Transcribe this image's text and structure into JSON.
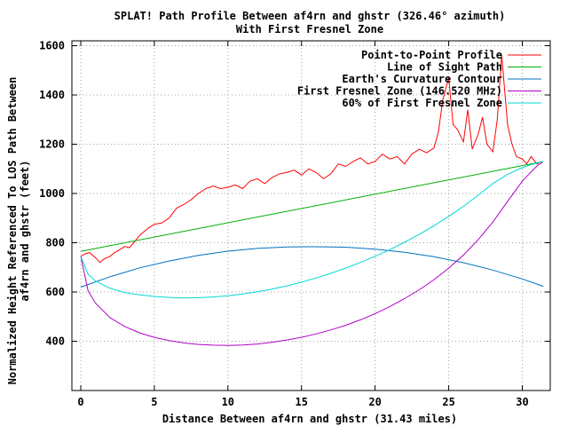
{
  "chart_data": {
    "type": "line",
    "title_line1": "SPLAT! Path Profile Between af4rn and ghstr (326.46° azimuth)",
    "title_line2": "With First Fresnel Zone",
    "xlabel": "Distance Between af4rn and ghstr (31.43 miles)",
    "ylabel_line1": "Normalized Height Referenced To LOS Path Between",
    "ylabel_line2": "af4rn and ghstr (feet)",
    "xlim": [
      -0.6,
      31.9
    ],
    "ylim": [
      200,
      1620
    ],
    "x_ticks": [
      0,
      5,
      10,
      15,
      20,
      25,
      30
    ],
    "y_ticks": [
      400,
      600,
      800,
      1000,
      1200,
      1400,
      1600
    ],
    "grid": true,
    "legend_position": "top-right",
    "series": [
      {
        "name": "Point-to-Point Profile",
        "color": "#ff0000",
        "x": [
          0,
          0.3,
          0.6,
          1.0,
          1.3,
          1.6,
          2.0,
          2.3,
          2.6,
          3.0,
          3.3,
          3.6,
          4.0,
          4.3,
          4.6,
          5.0,
          5.5,
          6.0,
          6.5,
          7.0,
          7.5,
          8.0,
          8.5,
          9.0,
          9.5,
          10.0,
          10.5,
          11.0,
          11.5,
          12.0,
          12.5,
          13.0,
          13.5,
          14.0,
          14.5,
          15.0,
          15.5,
          16.0,
          16.5,
          17.0,
          17.5,
          18.0,
          18.5,
          19.0,
          19.5,
          20.0,
          20.5,
          21.0,
          21.5,
          22.0,
          22.5,
          23.0,
          23.5,
          24.0,
          24.3,
          24.6,
          25.0,
          25.3,
          25.6,
          26.0,
          26.3,
          26.6,
          27.0,
          27.3,
          27.6,
          28.0,
          28.3,
          28.6,
          29.0,
          29.3,
          29.6,
          30.0,
          30.3,
          30.6,
          31.0,
          31.3
        ],
        "values": [
          745,
          755,
          760,
          740,
          720,
          735,
          745,
          760,
          770,
          785,
          780,
          800,
          830,
          845,
          860,
          875,
          880,
          900,
          940,
          955,
          975,
          1000,
          1020,
          1030,
          1020,
          1025,
          1035,
          1020,
          1050,
          1060,
          1040,
          1065,
          1080,
          1085,
          1095,
          1075,
          1100,
          1085,
          1060,
          1080,
          1120,
          1110,
          1130,
          1145,
          1120,
          1130,
          1160,
          1140,
          1150,
          1120,
          1160,
          1180,
          1165,
          1185,
          1250,
          1380,
          1470,
          1280,
          1260,
          1210,
          1340,
          1180,
          1240,
          1310,
          1200,
          1170,
          1300,
          1560,
          1280,
          1200,
          1150,
          1140,
          1120,
          1150,
          1120,
          1130
        ]
      },
      {
        "name": "Line of Sight Path",
        "color": "#00b000",
        "x": [
          0,
          31.43
        ],
        "values": [
          765,
          1130
        ]
      },
      {
        "name": "Earth's Curvature Contour",
        "color": "#0070c0",
        "x": [
          0,
          2,
          4,
          6,
          8,
          10,
          12,
          14,
          15.7,
          18,
          20,
          22,
          24,
          26,
          28,
          30,
          31.43
        ],
        "values": [
          620,
          662,
          698,
          726,
          749,
          766,
          777,
          783,
          784,
          782,
          774,
          761,
          743,
          719,
          689,
          653,
          623
        ]
      },
      {
        "name": "First Fresnel Zone (146.520 MHz)",
        "color": "#b000c8",
        "x": [
          0,
          0.5,
          1,
          2,
          3,
          4,
          5,
          6,
          7,
          8,
          9,
          10,
          11,
          12,
          13,
          14,
          15,
          16,
          17,
          18,
          19,
          20,
          21,
          22,
          23,
          24,
          25,
          26,
          27,
          28,
          29,
          30,
          30.5,
          31,
          31.43
        ],
        "values": [
          745,
          605,
          555,
          495,
          460,
          434,
          416,
          403,
          393,
          387,
          384,
          383,
          385,
          389,
          396,
          405,
          416,
          430,
          446,
          465,
          487,
          512,
          541,
          573,
          609,
          650,
          697,
          750,
          812,
          884,
          968,
          1050,
          1082,
          1112,
          1130
        ]
      },
      {
        "name": "60% of First Fresnel Zone",
        "color": "#00d8d8",
        "x": [
          0,
          0.5,
          1,
          2,
          3,
          4,
          5,
          6,
          7,
          8,
          9,
          10,
          11,
          12,
          13,
          14,
          15,
          16,
          17,
          18,
          19,
          20,
          21,
          22,
          23,
          24,
          25,
          26,
          27,
          28,
          29,
          30,
          30.5,
          31,
          31.43
        ],
        "values": [
          745,
          672,
          645,
          615,
          598,
          588,
          582,
          578,
          576,
          577,
          580,
          585,
          592,
          601,
          612,
          625,
          640,
          657,
          676,
          697,
          720,
          745,
          772,
          802,
          834,
          869,
          907,
          948,
          993,
          1040,
          1078,
          1105,
          1115,
          1124,
          1130
        ]
      }
    ]
  }
}
